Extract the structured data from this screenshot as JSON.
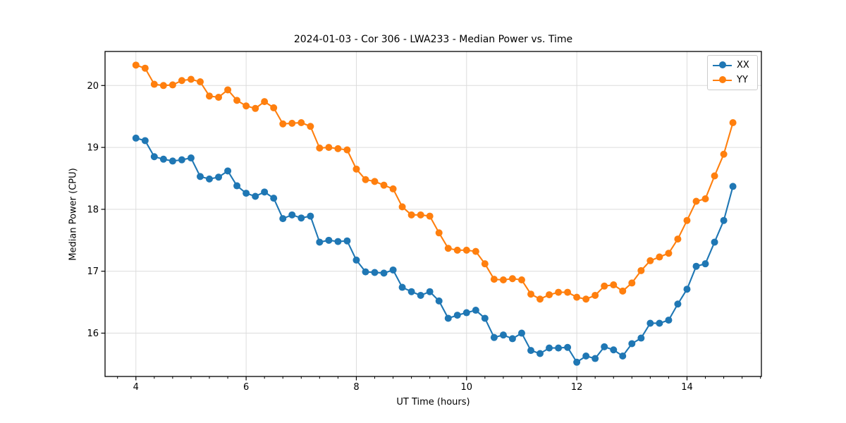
{
  "chart_data": {
    "type": "line",
    "title": "2024-01-03 - Cor 306 - LWA233 - Median Power vs. Time",
    "xlabel": "UT Time (hours)",
    "ylabel": "Median Power (CPU)",
    "xlim": [
      3.44,
      15.35
    ],
    "ylim": [
      15.3,
      20.55
    ],
    "xticks": [
      4,
      6,
      8,
      10,
      12,
      14
    ],
    "yticks": [
      16,
      17,
      18,
      19,
      20
    ],
    "x_minor_tick_step": 0.33333,
    "grid": true,
    "legend_position": "upper right",
    "marker": "circle",
    "x": [
      4.0,
      4.167,
      4.333,
      4.5,
      4.667,
      4.833,
      5.0,
      5.167,
      5.333,
      5.5,
      5.667,
      5.833,
      6.0,
      6.167,
      6.333,
      6.5,
      6.667,
      6.833,
      7.0,
      7.167,
      7.333,
      7.5,
      7.667,
      7.833,
      8.0,
      8.167,
      8.333,
      8.5,
      8.667,
      8.833,
      9.0,
      9.167,
      9.333,
      9.5,
      9.667,
      9.833,
      10.0,
      10.167,
      10.333,
      10.5,
      10.667,
      10.833,
      11.0,
      11.167,
      11.333,
      11.5,
      11.667,
      11.833,
      12.0,
      12.167,
      12.333,
      12.5,
      12.667,
      12.833,
      13.0,
      13.167,
      13.333,
      13.5,
      13.667,
      13.833,
      14.0,
      14.167,
      14.333,
      14.5,
      14.667,
      14.833
    ],
    "series": [
      {
        "name": "XX",
        "color": "#1f77b4",
        "values": [
          19.15,
          19.11,
          18.85,
          18.81,
          18.78,
          18.8,
          18.83,
          18.53,
          18.49,
          18.52,
          18.62,
          18.38,
          18.26,
          18.21,
          18.28,
          18.18,
          17.85,
          17.91,
          17.86,
          17.89,
          17.47,
          17.5,
          17.48,
          17.49,
          17.18,
          16.99,
          16.98,
          16.97,
          17.02,
          16.74,
          16.67,
          16.61,
          16.67,
          16.52,
          16.24,
          16.29,
          16.33,
          16.37,
          16.24,
          15.93,
          15.97,
          15.91,
          16.0,
          15.72,
          15.67,
          15.76,
          15.76,
          15.77,
          15.53,
          15.63,
          15.59,
          15.78,
          15.73,
          15.63,
          15.83,
          15.92,
          16.16,
          16.16,
          16.21,
          16.47,
          16.71,
          17.08,
          17.12,
          17.47,
          17.82,
          18.37
        ]
      },
      {
        "name": "YY",
        "color": "#ff7f0e",
        "values": [
          20.33,
          20.28,
          20.02,
          20.0,
          20.01,
          20.08,
          20.1,
          20.06,
          19.83,
          19.81,
          19.93,
          19.76,
          19.67,
          19.63,
          19.74,
          19.64,
          19.38,
          19.39,
          19.4,
          19.34,
          18.99,
          19.0,
          18.98,
          18.96,
          18.65,
          18.48,
          18.45,
          18.39,
          18.33,
          18.04,
          17.91,
          17.91,
          17.89,
          17.62,
          17.37,
          17.34,
          17.34,
          17.32,
          17.12,
          16.87,
          16.86,
          16.88,
          16.86,
          16.63,
          16.55,
          16.62,
          16.66,
          16.66,
          16.58,
          16.55,
          16.61,
          16.76,
          16.78,
          16.68,
          16.81,
          17.01,
          17.17,
          17.23,
          17.29,
          17.52,
          17.82,
          18.13,
          18.17,
          18.54,
          18.89,
          19.4
        ]
      }
    ]
  },
  "colors": {
    "background": "#ffffff",
    "grid": "#dcdcdc",
    "spine": "#000000",
    "tick_text": "#000000"
  }
}
